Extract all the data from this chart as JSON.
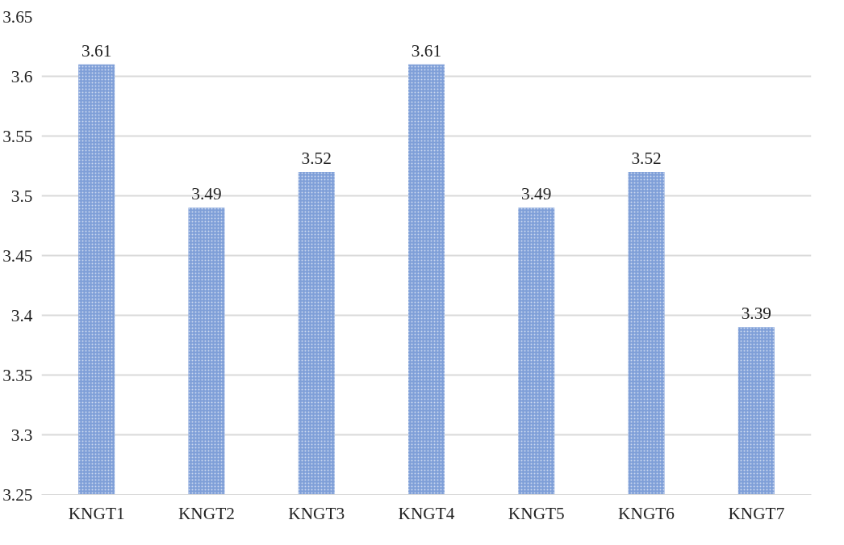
{
  "chart_data": {
    "type": "bar",
    "categories": [
      "KNGT1",
      "KNGT2",
      "KNGT3",
      "KNGT4",
      "KNGT5",
      "KNGT6",
      "KNGT7"
    ],
    "values": [
      3.61,
      3.49,
      3.52,
      3.61,
      3.49,
      3.52,
      3.39
    ],
    "color": "#7f9fd8",
    "ylim": [
      3.25,
      3.65
    ],
    "yticks": [
      3.25,
      3.3,
      3.35,
      3.4,
      3.45,
      3.5,
      3.55,
      3.6,
      3.65
    ],
    "grid": "y",
    "data_labels": true
  }
}
